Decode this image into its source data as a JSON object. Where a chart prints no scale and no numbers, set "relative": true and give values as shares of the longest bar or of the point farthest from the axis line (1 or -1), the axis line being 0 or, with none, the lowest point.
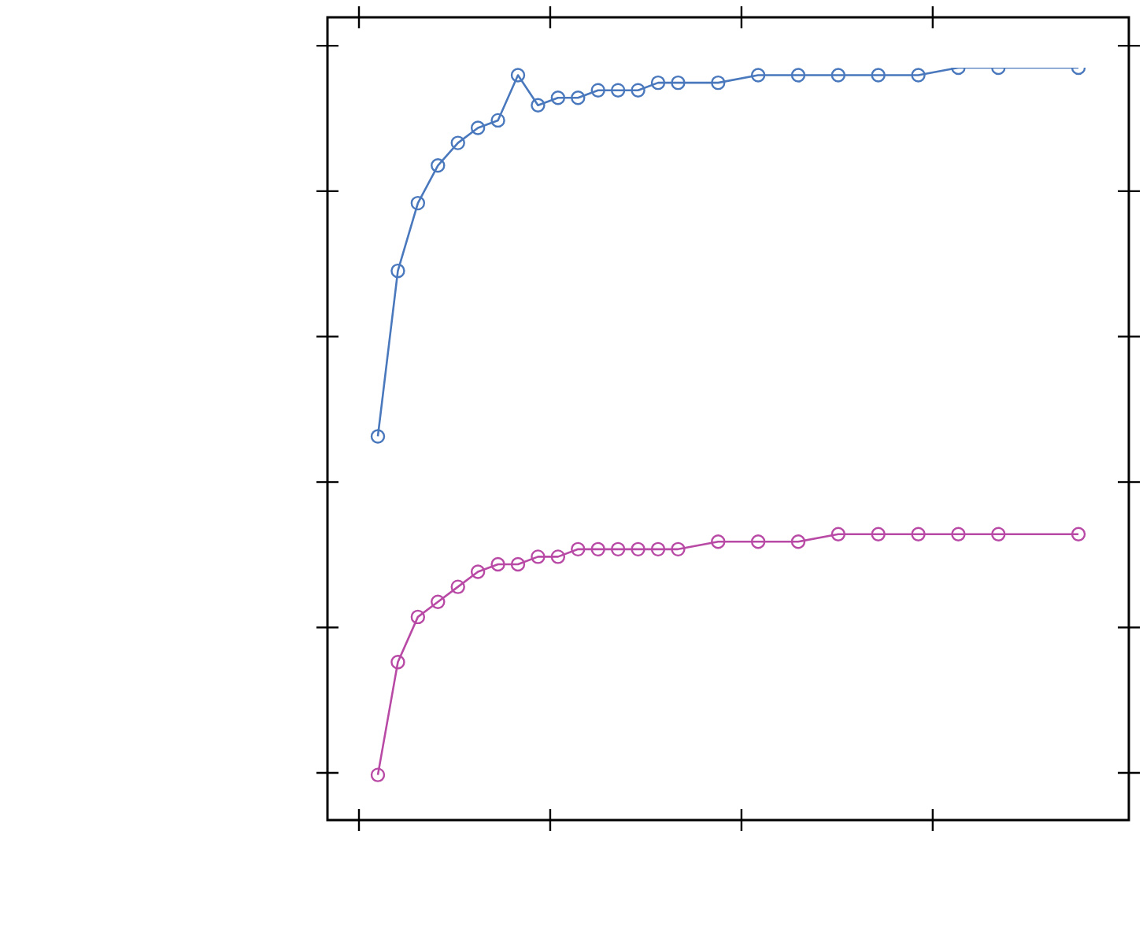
{
  "chart_data": {
    "type": "line",
    "relative": true,
    "marker": "circle",
    "line_style": "solid",
    "legend": false,
    "tick_labels": false,
    "categories": [
      null,
      null,
      null,
      null,
      null,
      null,
      null,
      null,
      null,
      null,
      null,
      null,
      null,
      null,
      null,
      null,
      null,
      null,
      null,
      null,
      null,
      null,
      null,
      null,
      null,
      null,
      null,
      null,
      null,
      null,
      null,
      null,
      null,
      null,
      null,
      null
    ],
    "series": [
      {
        "color": "#4a78bd",
        "values": [
          0.51,
          0.73,
          0.82,
          0.87,
          0.9,
          0.92,
          0.93,
          0.99,
          0.95,
          0.96,
          0.96,
          0.97,
          0.97,
          0.97,
          0.98,
          0.98,
          null,
          0.98,
          null,
          0.99,
          null,
          0.99,
          null,
          0.99,
          null,
          0.99,
          null,
          0.99,
          null,
          1.0,
          null,
          1.0,
          null,
          null,
          null,
          1
        ]
      },
      {
        "color": "#b84aa6",
        "values": [
          0.06,
          0.21,
          0.27,
          0.29,
          0.31,
          0.33,
          0.34,
          0.34,
          0.35,
          0.35,
          0.36,
          0.36,
          0.36,
          0.36,
          0.36,
          0.36,
          null,
          0.37,
          null,
          0.37,
          null,
          0.37,
          null,
          0.38,
          null,
          0.38,
          null,
          0.38,
          null,
          0.38,
          null,
          0.38,
          null,
          null,
          null,
          0.38
        ]
      }
    ]
  }
}
